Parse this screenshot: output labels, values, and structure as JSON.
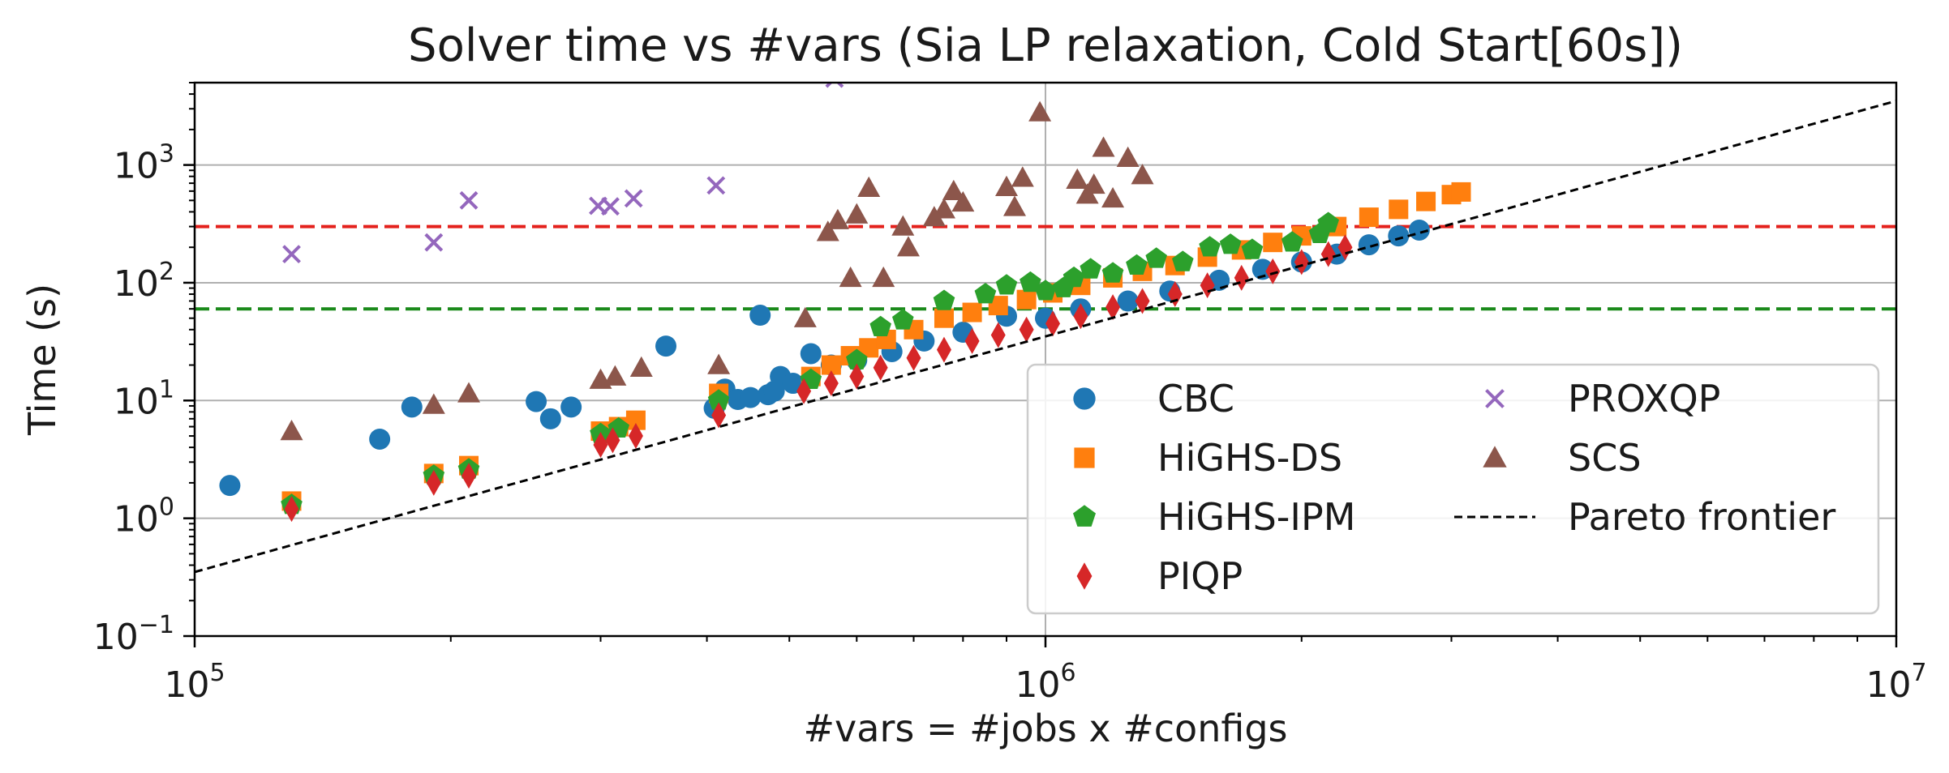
{
  "chart_data": {
    "type": "scatter",
    "title": "Solver time vs #vars (Sia LP relaxation, Cold Start[60s])",
    "xlabel": "#vars = #jobs x #configs",
    "ylabel": "Time (s)",
    "xscale": "log",
    "yscale": "log",
    "xlim": [
      100000,
      10000000
    ],
    "ylim": [
      0.1,
      5000
    ],
    "grid": "major",
    "legend_position": "lower-right",
    "legend_columns": 2,
    "x_ticks": [
      {
        "value": 100000,
        "base": "10",
        "exp": "5"
      },
      {
        "value": 1000000,
        "base": "10",
        "exp": "6"
      },
      {
        "value": 10000000,
        "base": "10",
        "exp": "7"
      }
    ],
    "y_ticks": [
      {
        "value": 0.1,
        "base": "10",
        "exp": "−1"
      },
      {
        "value": 1,
        "base": "10",
        "exp": "0"
      },
      {
        "value": 10,
        "base": "10",
        "exp": "1"
      },
      {
        "value": 100,
        "base": "10",
        "exp": "2"
      },
      {
        "value": 1000,
        "base": "10",
        "exp": "3"
      }
    ],
    "reference_lines": [
      {
        "y": 300,
        "color": "#e4211c",
        "style": "dashed"
      },
      {
        "y": 60,
        "color": "#1b8a1b",
        "style": "dashed"
      }
    ],
    "pareto_frontier": {
      "name": "Pareto frontier",
      "color": "#000000",
      "style": "dashed",
      "points": [
        [
          100000,
          0.35
        ],
        [
          10000000,
          3500
        ]
      ]
    },
    "series": [
      {
        "name": "CBC",
        "marker": "circle",
        "color": "#1f77b4",
        "points": [
          [
            110000,
            1.9
          ],
          [
            165000,
            4.7
          ],
          [
            180000,
            8.8
          ],
          [
            252000,
            9.8
          ],
          [
            262000,
            7.0
          ],
          [
            277000,
            8.8
          ],
          [
            358000,
            29
          ],
          [
            408000,
            8.6
          ],
          [
            420000,
            12.5
          ],
          [
            435000,
            10.2
          ],
          [
            450000,
            10.6
          ],
          [
            462000,
            53
          ],
          [
            472000,
            11.2
          ],
          [
            480000,
            12
          ],
          [
            488000,
            16
          ],
          [
            505000,
            14
          ],
          [
            530000,
            25
          ],
          [
            560000,
            20
          ],
          [
            600000,
            22
          ],
          [
            660000,
            26
          ],
          [
            720000,
            32
          ],
          [
            800000,
            38
          ],
          [
            900000,
            52
          ],
          [
            1000000,
            50
          ],
          [
            1100000,
            60
          ],
          [
            1250000,
            70
          ],
          [
            1400000,
            85
          ],
          [
            1600000,
            105
          ],
          [
            1800000,
            130
          ],
          [
            2000000,
            150
          ],
          [
            2200000,
            175
          ],
          [
            2400000,
            210
          ],
          [
            2600000,
            250
          ],
          [
            2750000,
            280
          ]
        ]
      },
      {
        "name": "HiGHS-DS",
        "marker": "square",
        "color": "#ff7f0e",
        "points": [
          [
            130000,
            1.4
          ],
          [
            191000,
            2.4
          ],
          [
            210000,
            2.8
          ],
          [
            300000,
            5.5
          ],
          [
            315000,
            6.0
          ],
          [
            330000,
            6.8
          ],
          [
            413000,
            11.5
          ],
          [
            530000,
            16
          ],
          [
            560000,
            20
          ],
          [
            590000,
            24
          ],
          [
            620000,
            28
          ],
          [
            650000,
            33
          ],
          [
            700000,
            40
          ],
          [
            760000,
            50
          ],
          [
            820000,
            56
          ],
          [
            880000,
            64
          ],
          [
            950000,
            72
          ],
          [
            1020000,
            82
          ],
          [
            1100000,
            95
          ],
          [
            1200000,
            110
          ],
          [
            1300000,
            125
          ],
          [
            1420000,
            140
          ],
          [
            1550000,
            165
          ],
          [
            1700000,
            190
          ],
          [
            1850000,
            220
          ],
          [
            2000000,
            250
          ],
          [
            2200000,
            300
          ],
          [
            2400000,
            360
          ],
          [
            2600000,
            420
          ],
          [
            2800000,
            490
          ],
          [
            3000000,
            560
          ],
          [
            3080000,
            590
          ]
        ]
      },
      {
        "name": "HiGHS-IPM",
        "marker": "pentagon",
        "color": "#2ca02c",
        "points": [
          [
            130000,
            1.3
          ],
          [
            191000,
            2.3
          ],
          [
            210000,
            2.6
          ],
          [
            300000,
            5.2
          ],
          [
            315000,
            5.8
          ],
          [
            413000,
            10
          ],
          [
            530000,
            15
          ],
          [
            600000,
            22
          ],
          [
            640000,
            42
          ],
          [
            680000,
            48
          ],
          [
            760000,
            70
          ],
          [
            850000,
            80
          ],
          [
            900000,
            95
          ],
          [
            960000,
            100
          ],
          [
            1000000,
            85
          ],
          [
            1050000,
            90
          ],
          [
            1080000,
            110
          ],
          [
            1130000,
            130
          ],
          [
            1200000,
            120
          ],
          [
            1280000,
            140
          ],
          [
            1350000,
            160
          ],
          [
            1450000,
            150
          ],
          [
            1560000,
            200
          ],
          [
            1650000,
            210
          ],
          [
            1750000,
            190
          ],
          [
            1950000,
            220
          ],
          [
            2100000,
            260
          ],
          [
            2150000,
            320
          ]
        ]
      },
      {
        "name": "PIQP",
        "marker": "diamond",
        "color": "#d62728",
        "points": [
          [
            130000,
            1.2
          ],
          [
            191000,
            2.0
          ],
          [
            210000,
            2.3
          ],
          [
            300000,
            4.2
          ],
          [
            310000,
            4.6
          ],
          [
            330000,
            5.0
          ],
          [
            413000,
            7.5
          ],
          [
            520000,
            12
          ],
          [
            560000,
            14
          ],
          [
            600000,
            16
          ],
          [
            640000,
            19
          ],
          [
            700000,
            23
          ],
          [
            760000,
            27
          ],
          [
            820000,
            32
          ],
          [
            880000,
            36
          ],
          [
            950000,
            40
          ],
          [
            1020000,
            45
          ],
          [
            1100000,
            52
          ],
          [
            1200000,
            62
          ],
          [
            1300000,
            70
          ],
          [
            1420000,
            80
          ],
          [
            1550000,
            95
          ],
          [
            1700000,
            110
          ],
          [
            1850000,
            125
          ],
          [
            2000000,
            150
          ],
          [
            2150000,
            175
          ],
          [
            2250000,
            200
          ]
        ]
      },
      {
        "name": "PROXQP",
        "marker": "x",
        "color": "#9467bd",
        "points": [
          [
            130000,
            175
          ],
          [
            191000,
            220
          ],
          [
            210000,
            500
          ],
          [
            298000,
            450
          ],
          [
            308000,
            445
          ],
          [
            328000,
            520
          ],
          [
            410000,
            670
          ],
          [
            565000,
            5400
          ]
        ]
      },
      {
        "name": "SCS",
        "marker": "triangle",
        "color": "#8c564b",
        "points": [
          [
            130000,
            5.5
          ],
          [
            191000,
            9.2
          ],
          [
            210000,
            11.5
          ],
          [
            300000,
            15
          ],
          [
            312000,
            16
          ],
          [
            335000,
            19
          ],
          [
            413000,
            20
          ],
          [
            522000,
            50
          ],
          [
            555000,
            270
          ],
          [
            570000,
            340
          ],
          [
            590000,
            110
          ],
          [
            600000,
            380
          ],
          [
            620000,
            640
          ],
          [
            645000,
            110
          ],
          [
            680000,
            300
          ],
          [
            690000,
            200
          ],
          [
            740000,
            360
          ],
          [
            760000,
            420
          ],
          [
            780000,
            600
          ],
          [
            800000,
            480
          ],
          [
            900000,
            650
          ],
          [
            920000,
            440
          ],
          [
            940000,
            780
          ],
          [
            985000,
            2800
          ],
          [
            1090000,
            750
          ],
          [
            1120000,
            560
          ],
          [
            1140000,
            680
          ],
          [
            1170000,
            1400
          ],
          [
            1200000,
            520
          ],
          [
            1250000,
            1150
          ],
          [
            1300000,
            820
          ]
        ]
      }
    ]
  }
}
